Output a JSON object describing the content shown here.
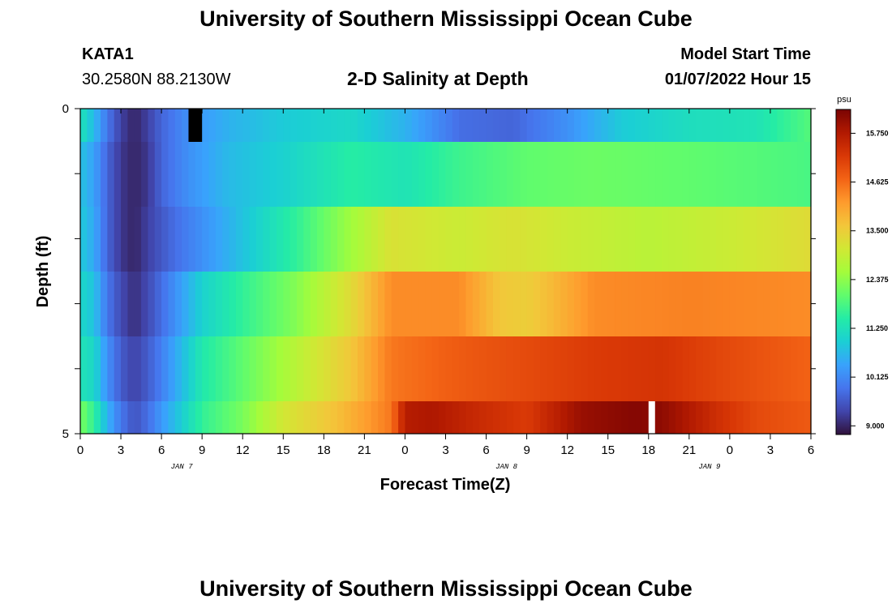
{
  "header": {
    "title": "University of Southern Mississippi Ocean Cube",
    "station": "KATA1",
    "coords": "30.2580N  88.2130W",
    "subtitle": "2-D Salinity at Depth",
    "start_label": "Model Start Time",
    "start_value": "01/07/2022 Hour 15"
  },
  "footer": {
    "title": "University of Southern Mississippi Ocean Cube"
  },
  "chart_data": {
    "type": "heatmap",
    "title": "2-D Salinity at Depth",
    "xlabel": "Forecast Time(Z)",
    "ylabel": "Depth (ft)",
    "x_tick_labels": [
      "0",
      "3",
      "6",
      "9",
      "12",
      "15",
      "18",
      "21",
      "0",
      "3",
      "6",
      "9",
      "12",
      "15",
      "18",
      "21",
      "0",
      "3",
      "6"
    ],
    "date_labels": [
      {
        "label": "JAN 7",
        "hour_index": 15
      },
      {
        "label": "JAN 8",
        "hour_index": 63
      },
      {
        "label": "JAN 9",
        "hour_index": 93
      }
    ],
    "y_tick_labels": [
      "0",
      "5"
    ],
    "ylim": [
      0,
      5
    ],
    "hours_total": 108,
    "depth_rows": 6,
    "colorbar": {
      "unit": "psu",
      "min": 8.8,
      "max": 16.3,
      "tick_labels": [
        "15.750",
        "14.625",
        "13.500",
        "12.375",
        "11.250",
        "10.125",
        "9.000"
      ],
      "tick_values": [
        15.75,
        14.625,
        13.5,
        12.375,
        11.25,
        10.125,
        9.0
      ],
      "colors": [
        "#30123b",
        "#4145ab",
        "#4675ed",
        "#39a2fc",
        "#1bcfd4",
        "#24eca6",
        "#61fc6c",
        "#a4fc3b",
        "#d1e834",
        "#f3c63a",
        "#fe9b2d",
        "#f36315",
        "#d93806",
        "#b11901",
        "#7a0403"
      ]
    },
    "row_profiles": [
      {
        "row": 0,
        "keys": [
          [
            0,
            11.3
          ],
          [
            2,
            10.7
          ],
          [
            4,
            9.9
          ],
          [
            6,
            9.3
          ],
          [
            8,
            9.0
          ],
          [
            10,
            9.3
          ],
          [
            12,
            9.7
          ],
          [
            16,
            10.2
          ],
          [
            22,
            10.6
          ],
          [
            30,
            10.9
          ],
          [
            40,
            11.1
          ],
          [
            48,
            10.6
          ],
          [
            56,
            9.8
          ],
          [
            64,
            9.7
          ],
          [
            72,
            10.2
          ],
          [
            80,
            10.9
          ],
          [
            90,
            11.2
          ],
          [
            100,
            11.3
          ],
          [
            108,
            11.9
          ]
        ]
      },
      {
        "row": 1,
        "keys": [
          [
            0,
            10.8
          ],
          [
            2,
            10.4
          ],
          [
            4,
            9.7
          ],
          [
            6,
            9.2
          ],
          [
            8,
            9.0
          ],
          [
            10,
            9.2
          ],
          [
            12,
            9.7
          ],
          [
            16,
            10.2
          ],
          [
            22,
            10.7
          ],
          [
            30,
            11.0
          ],
          [
            40,
            11.5
          ],
          [
            48,
            11.3
          ],
          [
            56,
            11.7
          ],
          [
            66,
            12.0
          ],
          [
            76,
            12.1
          ],
          [
            90,
            12.0
          ],
          [
            100,
            11.9
          ],
          [
            108,
            11.8
          ]
        ]
      },
      {
        "row": 2,
        "keys": [
          [
            0,
            10.9
          ],
          [
            2,
            10.5
          ],
          [
            4,
            9.7
          ],
          [
            6,
            9.2
          ],
          [
            8,
            9.0
          ],
          [
            10,
            9.3
          ],
          [
            14,
            9.8
          ],
          [
            18,
            10.2
          ],
          [
            24,
            10.8
          ],
          [
            32,
            11.6
          ],
          [
            38,
            12.3
          ],
          [
            46,
            13.2
          ],
          [
            56,
            13.0
          ],
          [
            64,
            13.2
          ],
          [
            72,
            13.0
          ],
          [
            84,
            12.8
          ],
          [
            96,
            13.0
          ],
          [
            108,
            13.3
          ]
        ]
      },
      {
        "row": 3,
        "keys": [
          [
            0,
            11.1
          ],
          [
            2,
            10.8
          ],
          [
            4,
            9.9
          ],
          [
            6,
            9.4
          ],
          [
            8,
            9.1
          ],
          [
            10,
            9.4
          ],
          [
            14,
            10.2
          ],
          [
            18,
            11.0
          ],
          [
            24,
            11.6
          ],
          [
            32,
            12.3
          ],
          [
            40,
            13.3
          ],
          [
            46,
            14.3
          ],
          [
            56,
            14.3
          ],
          [
            62,
            13.6
          ],
          [
            66,
            13.5
          ],
          [
            70,
            13.8
          ],
          [
            76,
            14.3
          ],
          [
            90,
            14.4
          ],
          [
            108,
            14.3
          ]
        ]
      },
      {
        "row": 4,
        "keys": [
          [
            0,
            11.3
          ],
          [
            2,
            11.1
          ],
          [
            4,
            10.2
          ],
          [
            6,
            9.6
          ],
          [
            8,
            9.3
          ],
          [
            10,
            9.6
          ],
          [
            12,
            10.0
          ],
          [
            18,
            11.4
          ],
          [
            26,
            12.2
          ],
          [
            34,
            13.0
          ],
          [
            40,
            13.6
          ],
          [
            46,
            14.5
          ],
          [
            56,
            14.8
          ],
          [
            66,
            15.0
          ],
          [
            76,
            15.2
          ],
          [
            86,
            15.3
          ],
          [
            96,
            15.0
          ],
          [
            108,
            14.7
          ]
        ]
      },
      {
        "row": 5,
        "keys": [
          [
            0,
            12.2
          ],
          [
            2,
            11.6
          ],
          [
            4,
            10.6
          ],
          [
            6,
            9.9
          ],
          [
            8,
            9.5
          ],
          [
            10,
            9.8
          ],
          [
            12,
            10.3
          ],
          [
            18,
            11.6
          ],
          [
            24,
            12.2
          ],
          [
            30,
            13.1
          ],
          [
            38,
            13.7
          ],
          [
            46,
            14.5
          ],
          [
            48,
            15.7
          ],
          [
            52,
            15.8
          ],
          [
            58,
            15.5
          ],
          [
            66,
            15.2
          ],
          [
            74,
            16.0
          ],
          [
            82,
            16.2
          ],
          [
            86,
            16.1
          ],
          [
            94,
            15.4
          ],
          [
            100,
            15.0
          ],
          [
            108,
            14.8
          ]
        ]
      }
    ],
    "missing_cells": [
      {
        "row": 0,
        "hour": 16,
        "fill": "#000000"
      },
      {
        "row": 5,
        "hour": 84,
        "fill": "#ffffff"
      }
    ]
  }
}
